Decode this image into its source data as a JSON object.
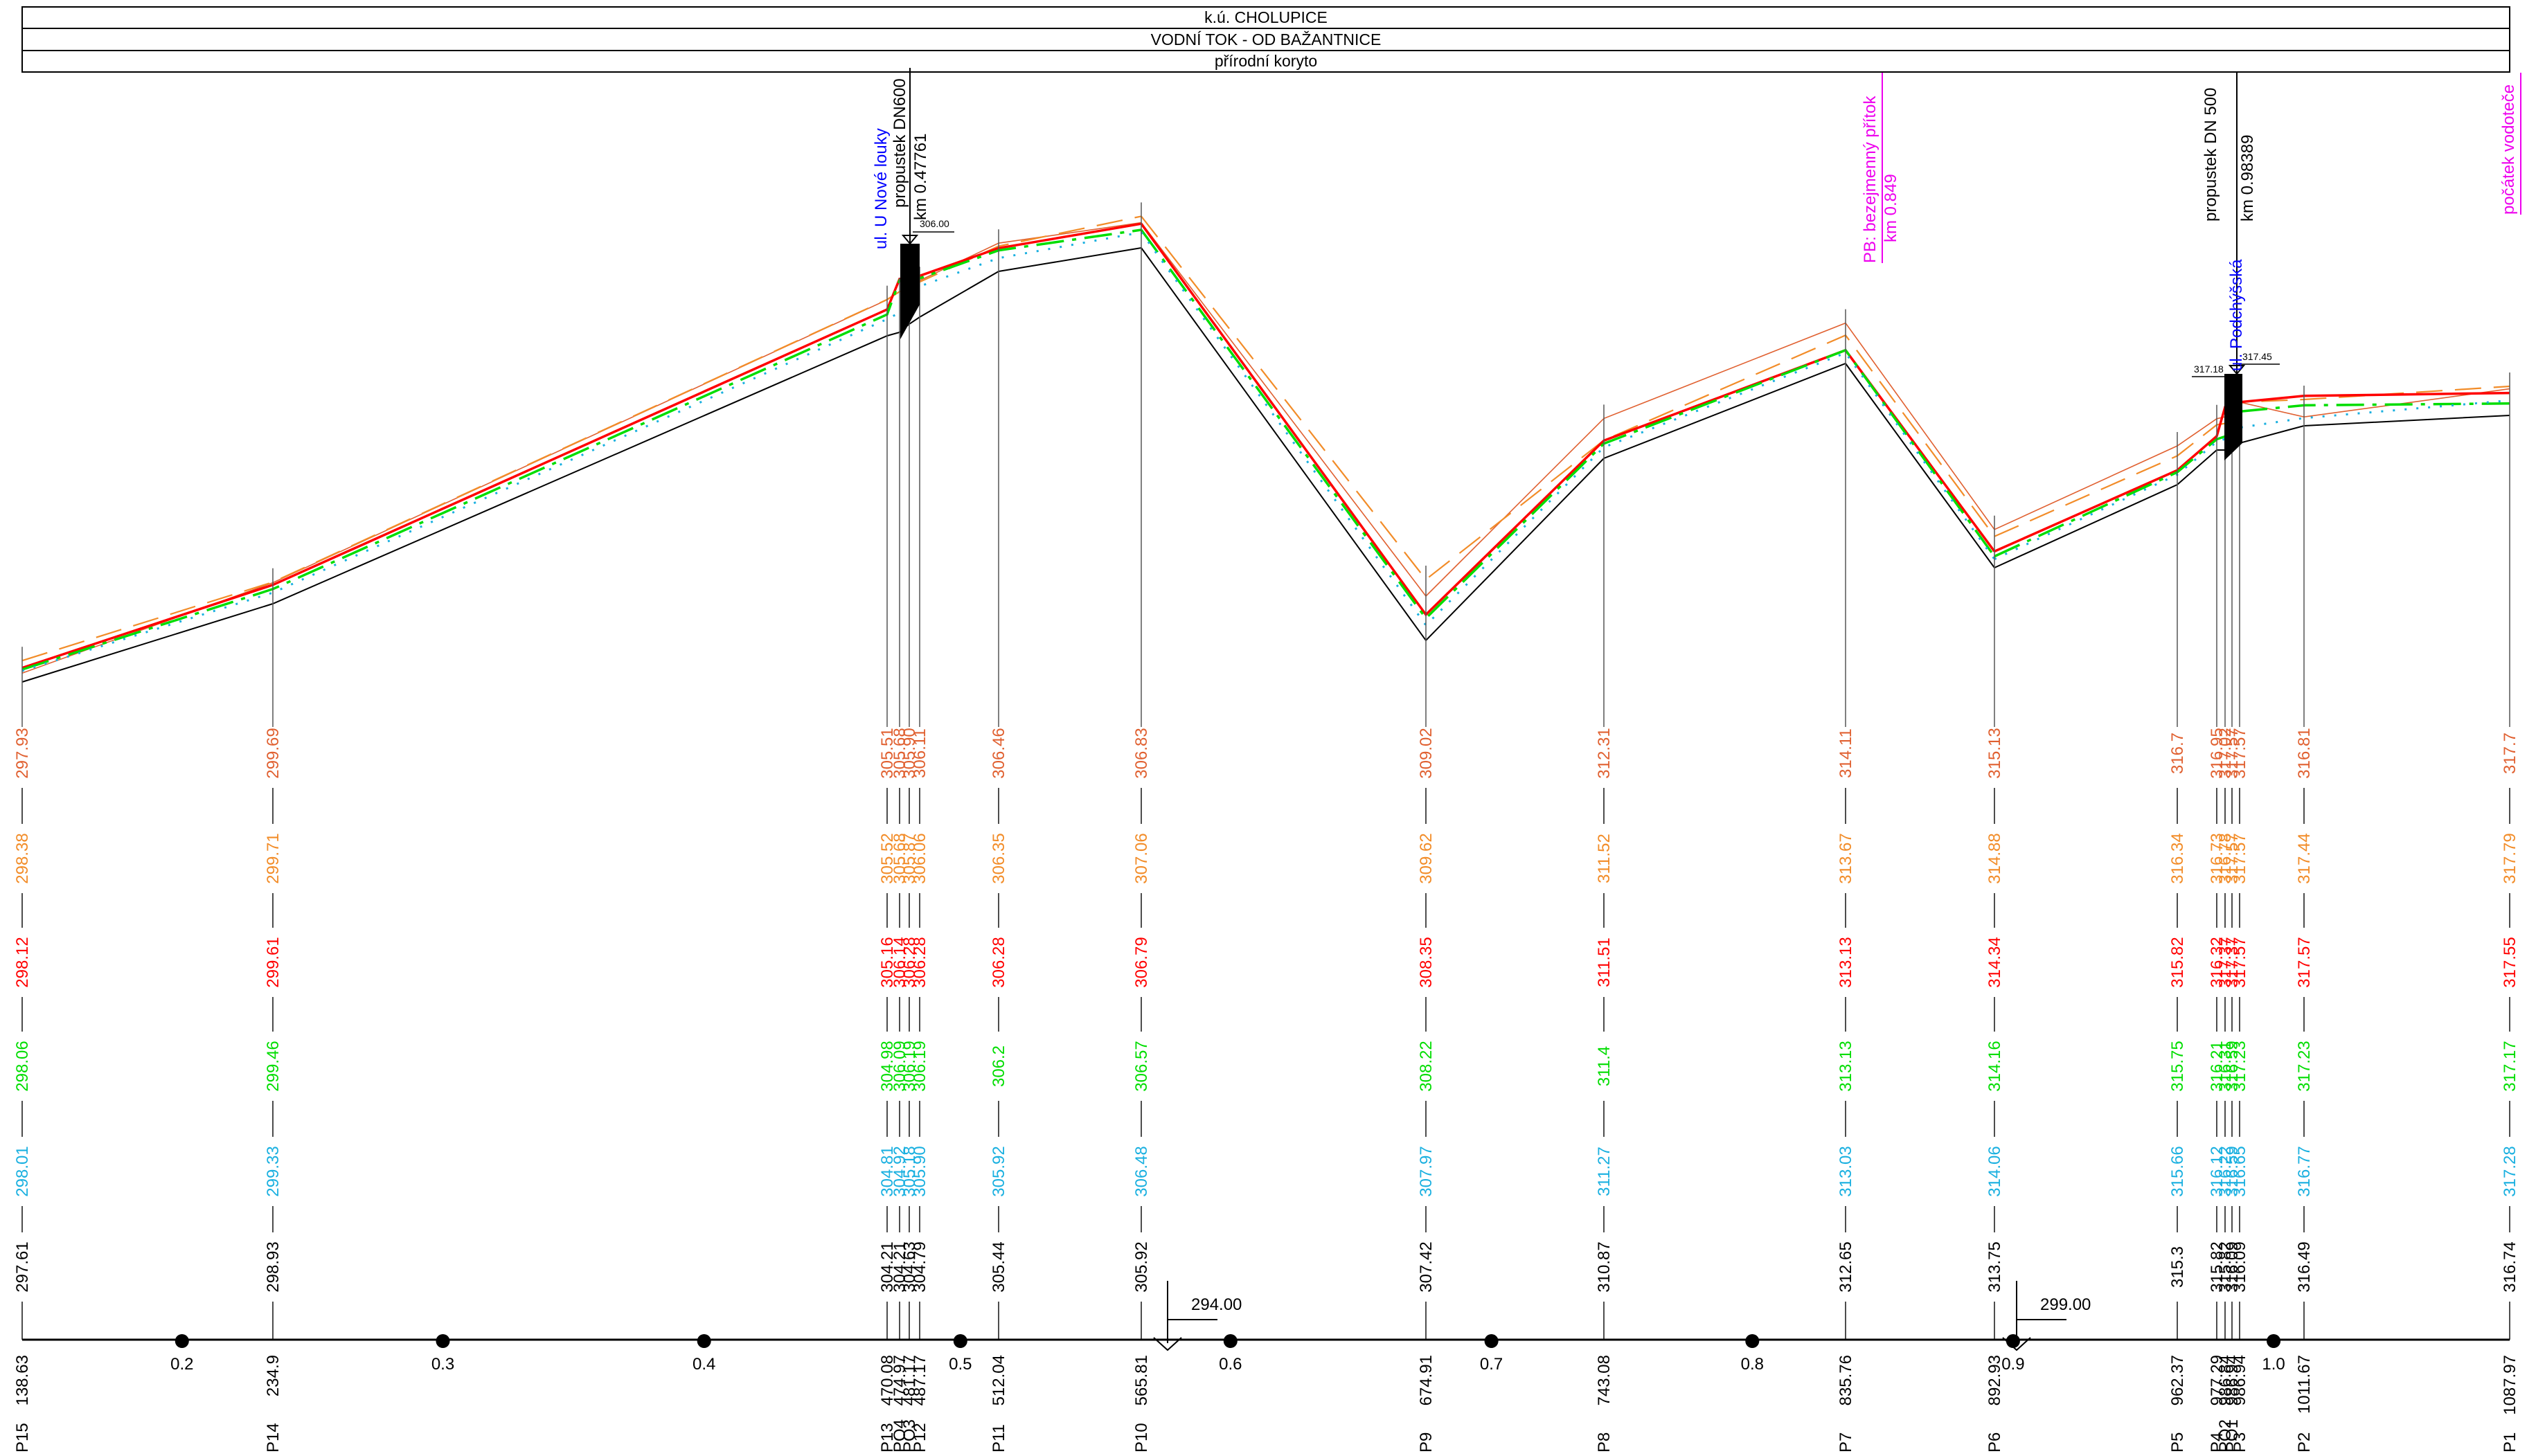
{
  "header": {
    "row1": "k.ú. CHOLUPICE",
    "row2": "VODNÍ TOK - OD BAŽANTNICE",
    "row3": "přírodní koryto"
  },
  "colors": {
    "dashed_orange": "#f28c28",
    "dashdot_orange": "#e8a060",
    "thin_orange": "#e06030",
    "red": "#ff0000",
    "green": "#00dd00",
    "cyan": "#1ab0e0",
    "black": "#000000",
    "blue": "#0000ff",
    "magenta": "#ee00ee"
  },
  "annotations": {
    "street1": "ul. U Nové louky",
    "culvert1": "propustek DN600",
    "culvert1_km": "km 0.47761",
    "culvert1_level": "306.00",
    "tributary": "PB: bezejmenný přítok",
    "tributary_km": "km 0.849",
    "street2": "ul. Podchýšská",
    "culvert2": "propustek DN 500",
    "culvert2_km": "km 0.98389",
    "culvert2_level_a": "317.18",
    "culvert2_level_b": "317.45",
    "spring": "počátek vodoteče"
  },
  "datum_labels": [
    "294.00",
    "299.00"
  ],
  "km_ticks": [
    {
      "km": 0.2,
      "label": "0.2"
    },
    {
      "km": 0.3,
      "label": "0.3"
    },
    {
      "km": 0.4,
      "label": "0.4"
    },
    {
      "km": 0.5,
      "label": "0.5"
    },
    {
      "km": 0.6,
      "label": "0.6"
    },
    {
      "km": 0.7,
      "label": "0.7"
    },
    {
      "km": 0.8,
      "label": "0.8"
    },
    {
      "km": 0.9,
      "label": "0.9"
    },
    {
      "km": 1.0,
      "label": "1.0"
    }
  ],
  "chart_data": {
    "type": "line",
    "title": "",
    "xlabel": "",
    "ylabel": "",
    "x": [
      138.63,
      234.9,
      470.08,
      474.97,
      481.17,
      487.17,
      512.04,
      565.81,
      674.91,
      743.08,
      835.76,
      892.93,
      962.37,
      977.29,
      986.84,
      986.94,
      986.94,
      1011.67,
      1087.97
    ],
    "profiles": [
      "P15",
      "P14",
      "P13",
      "PO4",
      "PO3",
      "P12",
      "P11",
      "P10",
      "P9",
      "P8",
      "P7",
      "P6",
      "P5",
      "P4",
      "PO2",
      "PO1",
      "P3",
      "P2",
      "P1"
    ],
    "station_labels": [
      "138.63",
      "234.9",
      "470.08",
      "474.97",
      "481.17",
      "487.17",
      "512.04",
      "565.81",
      "674.91",
      "743.08",
      "835.76",
      "892.93",
      "962.37",
      "977.29",
      "986.84",
      "986.94",
      "986.94",
      "1011.67",
      "1087.97"
    ],
    "rows": [
      {
        "color": "#e06030",
        "values": [
          "297.93",
          "299.69",
          "305.51",
          "305.68",
          "305.90",
          "306.11",
          "306.46",
          "306.83",
          "309.02",
          "312.31",
          "314.11",
          "315.13",
          "316.7",
          "316.95",
          "317.02",
          "317.57",
          "317.57",
          "316.81",
          "317.7"
        ]
      },
      {
        "color": "#f28c28",
        "values": [
          "298.38",
          "299.71",
          "305.52",
          "305.68",
          "305.87",
          "306.06",
          "306.35",
          "307.06",
          "309.62",
          "311.52",
          "313.67",
          "314.88",
          "316.34",
          "316.73",
          "316.78",
          "317.57",
          "317.57",
          "317.44",
          "317.79"
        ]
      },
      {
        "color": "#ff0000",
        "values": [
          "298.12",
          "299.61",
          "305.16",
          "306.14",
          "306.28",
          "306.28",
          "306.28",
          "306.79",
          "308.35",
          "311.51",
          "313.13",
          "314.34",
          "315.82",
          "316.32",
          "317.37",
          "317.37",
          "317.57",
          "317.57",
          "317.55"
        ]
      },
      {
        "color": "#00dd00",
        "values": [
          "298.06",
          "299.46",
          "304.98",
          "306.09",
          "306.19",
          "306.19",
          "306.2",
          "306.57",
          "308.22",
          "311.4",
          "313.13",
          "314.16",
          "315.75",
          "316.21",
          "316.31",
          "316.59",
          "317.23",
          "317.23",
          "317.17"
        ]
      },
      {
        "color": "#1ab0e0",
        "values": [
          "298.01",
          "299.33",
          "304.81",
          "304.92",
          "305.18",
          "305.90",
          "305.92",
          "306.48",
          "307.97",
          "311.27",
          "313.03",
          "314.06",
          "315.66",
          "316.12",
          "316.22",
          "316.59",
          "316.65",
          "316.77",
          "317.28"
        ]
      },
      {
        "color": "#000000",
        "values": [
          "297.61",
          "298.93",
          "304.21",
          "304.21",
          "304.63",
          "304.79",
          "305.44",
          "305.92",
          "307.42",
          "310.87",
          "312.65",
          "313.75",
          "315.3",
          "315.82",
          "315.82",
          "316.09",
          "316.09",
          "316.49",
          "316.74"
        ]
      }
    ]
  }
}
